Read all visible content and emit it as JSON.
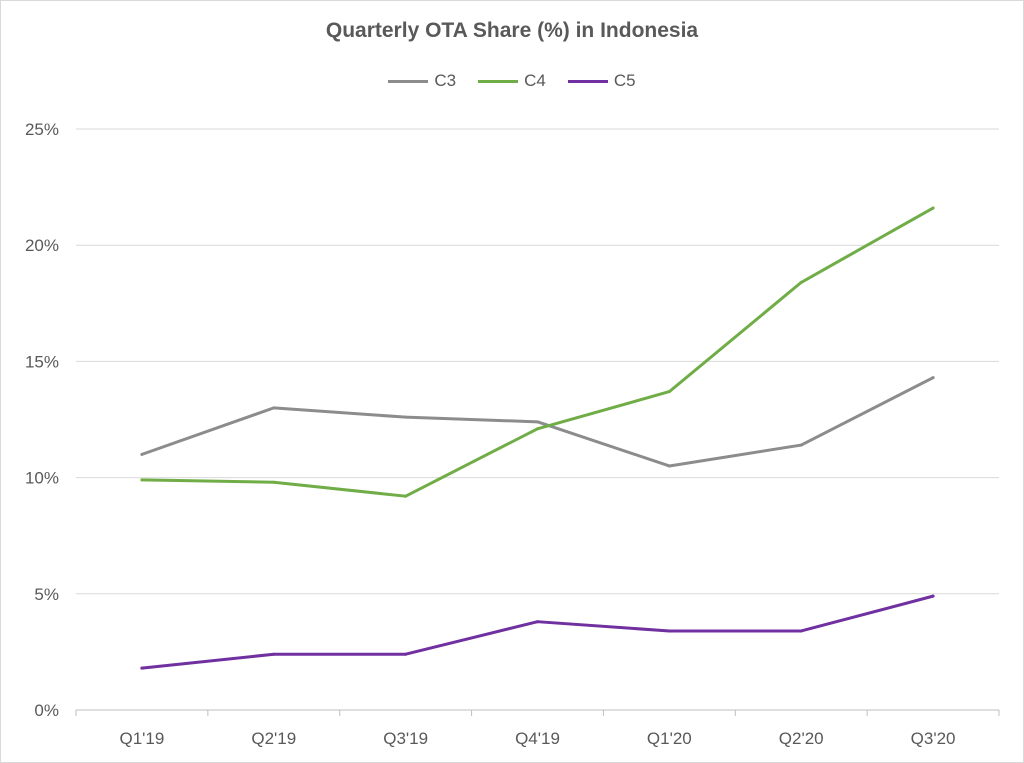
{
  "chart_data": {
    "type": "line",
    "title": "Quarterly OTA Share (%) in Indonesia",
    "xlabel": "",
    "ylabel": "",
    "categories": [
      "Q1'19",
      "Q2'19",
      "Q3'19",
      "Q4'19",
      "Q1'20",
      "Q2'20",
      "Q3'20"
    ],
    "ylim": [
      0,
      25
    ],
    "yticks": [
      0,
      5,
      10,
      15,
      20,
      25
    ],
    "ytick_labels": [
      "0%",
      "5%",
      "10%",
      "15%",
      "20%",
      "25%"
    ],
    "grid": true,
    "legend_position": "top",
    "series": [
      {
        "name": "C3",
        "color": "#8c8c8c",
        "values": [
          11.0,
          13.0,
          12.6,
          12.4,
          10.5,
          11.4,
          14.3
        ]
      },
      {
        "name": "C4",
        "color": "#70ad47",
        "values": [
          9.9,
          9.8,
          9.2,
          12.1,
          13.7,
          18.4,
          21.6
        ]
      },
      {
        "name": "C5",
        "color": "#7030a0",
        "values": [
          1.8,
          2.4,
          2.4,
          3.8,
          3.4,
          3.4,
          4.9
        ]
      }
    ]
  }
}
